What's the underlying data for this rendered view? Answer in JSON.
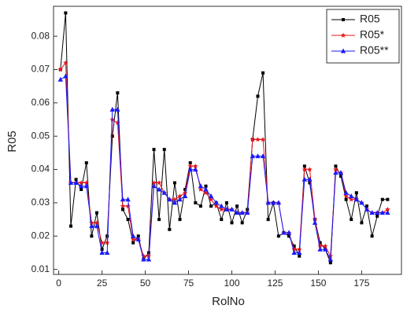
{
  "chart_data": {
    "type": "line",
    "xlabel": "RolNo",
    "ylabel": "R05",
    "x": [
      1,
      4,
      7,
      10,
      13,
      16,
      19,
      22,
      25,
      28,
      31,
      34,
      37,
      40,
      43,
      46,
      49,
      52,
      55,
      58,
      61,
      64,
      67,
      70,
      73,
      76,
      79,
      82,
      85,
      88,
      91,
      94,
      97,
      100,
      103,
      106,
      109,
      112,
      115,
      118,
      121,
      124,
      127,
      130,
      133,
      136,
      139,
      142,
      145,
      148,
      151,
      154,
      157,
      160,
      163,
      166,
      169,
      172,
      175,
      178,
      181,
      184,
      187,
      190
    ],
    "series": [
      {
        "name": "R05",
        "color": "#000000",
        "marker": "square",
        "values": [
          0.07,
          0.087,
          0.023,
          0.037,
          0.034,
          0.042,
          0.02,
          0.027,
          0.016,
          0.02,
          0.05,
          0.063,
          0.028,
          0.025,
          0.018,
          0.02,
          0.013,
          0.015,
          0.046,
          0.025,
          0.046,
          0.022,
          0.036,
          0.025,
          0.034,
          0.042,
          0.03,
          0.029,
          0.035,
          0.029,
          0.03,
          0.025,
          0.03,
          0.024,
          0.029,
          0.024,
          0.028,
          0.049,
          0.062,
          0.069,
          0.025,
          0.03,
          0.02,
          0.021,
          0.02,
          0.017,
          0.014,
          0.041,
          0.036,
          0.025,
          0.018,
          0.016,
          0.012,
          0.041,
          0.038,
          0.031,
          0.025,
          0.033,
          0.024,
          0.029,
          0.02,
          0.026,
          0.031,
          0.031
        ]
      },
      {
        "name": "R05*",
        "color": "#e8141b",
        "marker": "star",
        "values": [
          0.07,
          0.072,
          0.036,
          0.036,
          0.036,
          0.036,
          0.024,
          0.024,
          0.018,
          0.018,
          0.055,
          0.054,
          0.029,
          0.029,
          0.019,
          0.019,
          0.014,
          0.014,
          0.036,
          0.036,
          0.033,
          0.031,
          0.031,
          0.032,
          0.033,
          0.041,
          0.041,
          0.034,
          0.033,
          0.031,
          0.029,
          0.028,
          0.028,
          0.028,
          0.027,
          0.027,
          0.027,
          0.049,
          0.049,
          0.049,
          0.03,
          0.03,
          0.03,
          0.021,
          0.021,
          0.016,
          0.016,
          0.04,
          0.04,
          0.025,
          0.017,
          0.017,
          0.014,
          0.04,
          0.039,
          0.032,
          0.031,
          0.031,
          0.03,
          0.028,
          0.027,
          0.027,
          0.027,
          0.028
        ]
      },
      {
        "name": "R05**",
        "color": "#1a1aff",
        "marker": "triangle",
        "values": [
          0.067,
          0.068,
          0.036,
          0.036,
          0.035,
          0.035,
          0.023,
          0.023,
          0.015,
          0.015,
          0.058,
          0.058,
          0.031,
          0.031,
          0.02,
          0.019,
          0.013,
          0.013,
          0.035,
          0.034,
          0.033,
          0.031,
          0.03,
          0.031,
          0.032,
          0.04,
          0.04,
          0.035,
          0.034,
          0.032,
          0.03,
          0.029,
          0.028,
          0.028,
          0.027,
          0.027,
          0.027,
          0.044,
          0.044,
          0.044,
          0.03,
          0.03,
          0.03,
          0.021,
          0.021,
          0.015,
          0.015,
          0.037,
          0.037,
          0.024,
          0.016,
          0.016,
          0.013,
          0.039,
          0.039,
          0.033,
          0.032,
          0.031,
          0.03,
          0.028,
          0.027,
          0.027,
          0.027,
          0.027
        ]
      }
    ],
    "xlim": [
      -3,
      198
    ],
    "ylim": [
      0.0085,
      0.089
    ],
    "xticks": [
      0,
      25,
      50,
      75,
      100,
      125,
      150,
      175
    ],
    "yticks": [
      0.01,
      0.02,
      0.03,
      0.04,
      0.05,
      0.06,
      0.07,
      0.08
    ],
    "legend": "upper right",
    "grid": false
  }
}
